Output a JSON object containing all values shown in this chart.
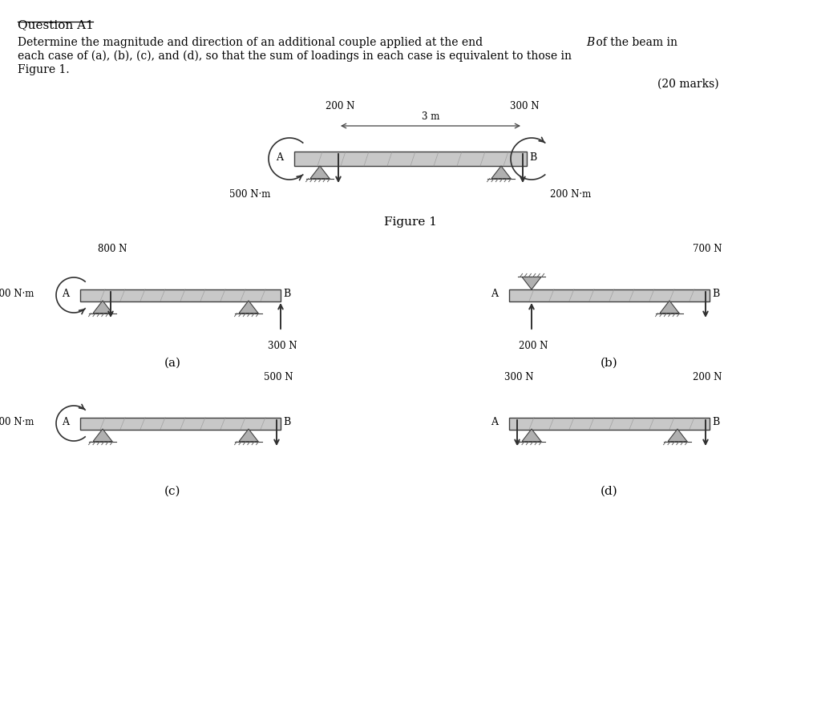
{
  "bg_color": "#ffffff",
  "beam_color": "#c8c8c8",
  "beam_edge_color": "#404040",
  "text_color": "#000000",
  "arrow_color": "#404040",
  "title": "Question A1",
  "line1": "Determine the magnitude and direction of an additional couple applied at the end ",
  "line1b": "B",
  "line1c": " of the beam in",
  "line2": "each case of (a), (b), (c), and (d), so that the sum of loadings in each case is equivalent to those in",
  "line3": "Figure 1.",
  "marks": "(20 marks)",
  "fig1_caption": "Figure 1"
}
